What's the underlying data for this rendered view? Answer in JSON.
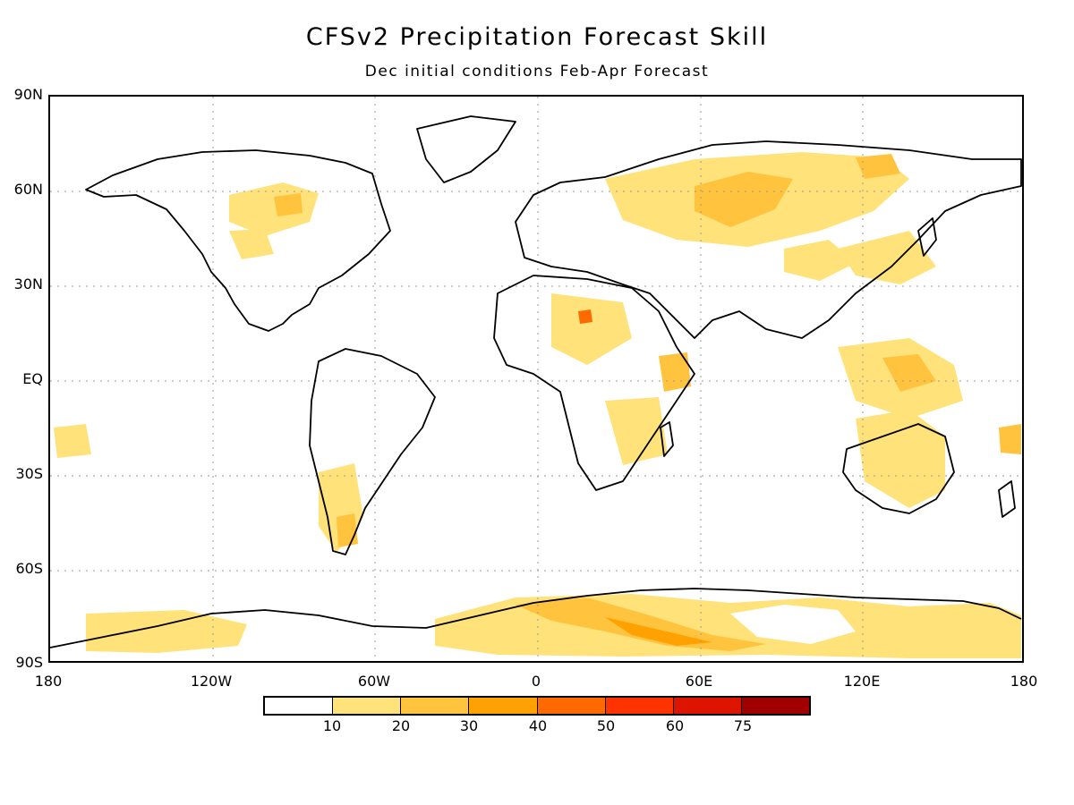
{
  "title": "CFSv2 Precipitation Forecast Skill",
  "subtitle": "Dec initial conditions   Feb-Apr Forecast",
  "y_axis_labels": [
    "90N",
    "60N",
    "30N",
    "EQ",
    "30S",
    "60S",
    "90S"
  ],
  "x_axis_labels": [
    "180",
    "120W",
    "60W",
    "0",
    "60E",
    "120E",
    "180"
  ],
  "colorbar": {
    "colors": [
      "#ffffff",
      "#ffe27a",
      "#ffc33d",
      "#ffa100",
      "#ff6a00",
      "#ff3300",
      "#dd1500",
      "#a00000"
    ],
    "tick_labels": [
      "10",
      "20",
      "30",
      "40",
      "50",
      "60",
      "75"
    ]
  },
  "colors": {
    "land_outline": "#000000",
    "grid": "#999999"
  }
}
